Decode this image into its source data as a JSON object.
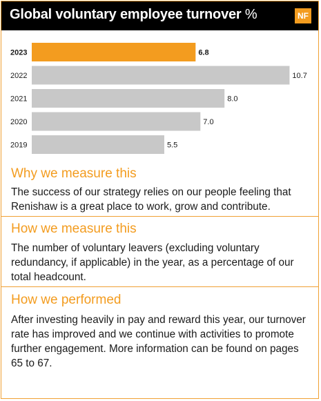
{
  "header": {
    "title": "Global voluntary employee turnover",
    "unit": "%",
    "badge": "NF"
  },
  "colors": {
    "accent": "#f39c1f",
    "bar_current": "#f39c1f",
    "bar_previous": "#c8c8c8"
  },
  "chart_data": {
    "type": "bar",
    "orientation": "horizontal",
    "categories": [
      "2023",
      "2022",
      "2021",
      "2020",
      "2019"
    ],
    "values": [
      6.8,
      10.7,
      8.0,
      7.0,
      5.5
    ],
    "value_labels": [
      "6.8",
      "10.7",
      "8.0",
      "7.0",
      "5.5"
    ],
    "highlight_category": "2023",
    "title": "Global voluntary employee turnover %",
    "xlabel": "",
    "ylabel": "",
    "xlim": [
      0,
      12
    ],
    "grid": false,
    "legend": "none"
  },
  "sections": [
    {
      "title": "Why we measure this",
      "body": "The success of our strategy relies on our people feeling that Renishaw is a great place to work, grow and contribute."
    },
    {
      "title": "How we measure this",
      "body": "The number of voluntary leavers (excluding voluntary redundancy, if applicable) in the year, as a percentage of our total headcount."
    },
    {
      "title": "How we performed",
      "body": "After investing heavily in pay and reward this year, our turnover rate has improved and we continue with activities to promote further engagement. More information can be found on pages 65 to 67."
    }
  ]
}
